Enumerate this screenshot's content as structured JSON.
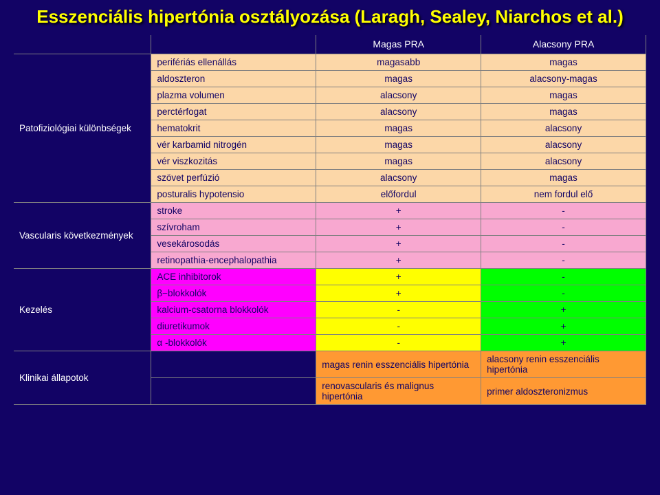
{
  "title": "Esszenciális hipertónia osztályozása (Laragh, Sealey, Niarchos et al.)",
  "header": {
    "colA": "Magas PRA",
    "colB": "Alacsony PRA"
  },
  "colors": {
    "peach": "#fcd7a8",
    "pink": "#f8a8d0",
    "yellow": "#ffff00",
    "green": "#00ff00",
    "magenta": "#ff00ff",
    "orange": "#ff9933"
  },
  "sections": [
    {
      "category": "Patofiziológiai különbségek",
      "bg": "peach",
      "rows": [
        {
          "sub": "perifériás ellenállás",
          "a": "magasabb",
          "b": "magas"
        },
        {
          "sub": "aldoszteron",
          "a": "magas",
          "b": "alacsony-magas"
        },
        {
          "sub": "plazma volumen",
          "a": "alacsony",
          "b": "magas"
        },
        {
          "sub": "perctérfogat",
          "a": "alacsony",
          "b": "magas"
        },
        {
          "sub": "hematokrit",
          "a": "magas",
          "b": "alacsony"
        },
        {
          "sub": "vér karbamid nitrogén",
          "a": "magas",
          "b": "alacsony"
        },
        {
          "sub": "vér viszkozitás",
          "a": "magas",
          "b": "alacsony"
        },
        {
          "sub": "szövet perfúzió",
          "a": "alacsony",
          "b": "magas"
        },
        {
          "sub": "posturalis hypotensio",
          "a": "előfordul",
          "b": "nem fordul elő"
        }
      ]
    },
    {
      "category": "Vascularis következmények",
      "bg": "pink",
      "rows": [
        {
          "sub": "stroke",
          "a": "+",
          "b": "-"
        },
        {
          "sub": "szívroham",
          "a": "+",
          "b": "-"
        },
        {
          "sub": "vesekárosodás",
          "a": "+",
          "b": "-"
        },
        {
          "sub": "retinopathia-encephalopathia",
          "a": "+",
          "b": "-"
        }
      ]
    },
    {
      "category": "Kezelés",
      "abA": "yellow",
      "abB": "green",
      "bg": "magenta",
      "rows": [
        {
          "sub": "ACE inhibitorok",
          "a": "+",
          "b": "-"
        },
        {
          "sub": "β−blokkolók",
          "a": "+",
          "b": "-"
        },
        {
          "sub": "kalcium-csatorna blokkolók",
          "a": "-",
          "b": "+"
        },
        {
          "sub": "diuretikumok",
          "a": "-",
          "b": "+"
        },
        {
          "sub": "α -blokkolók",
          "a": "-",
          "b": "+"
        }
      ]
    },
    {
      "category": "Klinikai állapotok",
      "bg": "orange",
      "rows": [
        {
          "sub": "",
          "a": "magas renin esszenciális hipertónia",
          "b": "alacsony renin esszenciális hipertónia"
        },
        {
          "sub": "",
          "a": "renovascularis és malignus hipertónia",
          "b": "primer aldoszteronizmus"
        }
      ]
    }
  ]
}
